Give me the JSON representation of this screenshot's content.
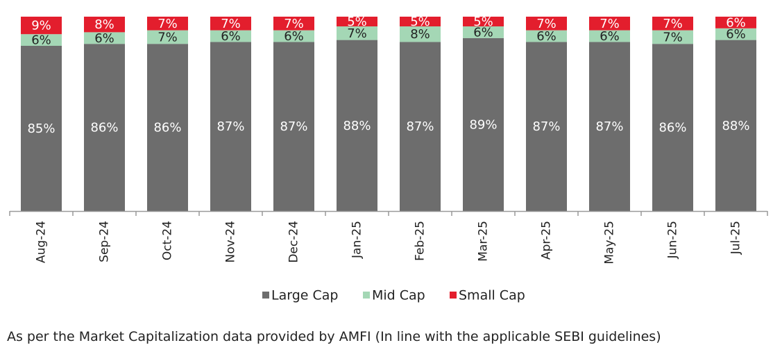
{
  "chart_data": {
    "type": "bar",
    "stacked": true,
    "percent_stacked": true,
    "categories": [
      "Aug-24",
      "Sep-24",
      "Oct-24",
      "Nov-24",
      "Dec-24",
      "Jan-25",
      "Feb-25",
      "Mar-25",
      "Apr-25",
      "May-25",
      "Jun-25",
      "Jul-25"
    ],
    "series": [
      {
        "name": "Large Cap",
        "color": "#6d6d6d",
        "label_color": "#ffffff",
        "values": [
          85,
          86,
          86,
          87,
          87,
          88,
          87,
          89,
          87,
          87,
          86,
          88
        ]
      },
      {
        "name": "Mid Cap",
        "color": "#a4d7b5",
        "label_color": "#222222",
        "values": [
          6,
          6,
          7,
          6,
          6,
          7,
          8,
          6,
          6,
          6,
          7,
          6
        ]
      },
      {
        "name": "Small Cap",
        "color": "#e31e2d",
        "label_color": "#ffffff",
        "values": [
          9,
          8,
          7,
          7,
          7,
          5,
          5,
          5,
          7,
          7,
          7,
          6
        ]
      }
    ],
    "ylim": [
      0,
      100
    ],
    "grid": false,
    "legend": "bottom-center",
    "xlabel": "",
    "ylabel": "",
    "title": ""
  },
  "footnote": "As per the Market Capitalization data provided by AMFI (In line with the applicable SEBI guidelines)"
}
